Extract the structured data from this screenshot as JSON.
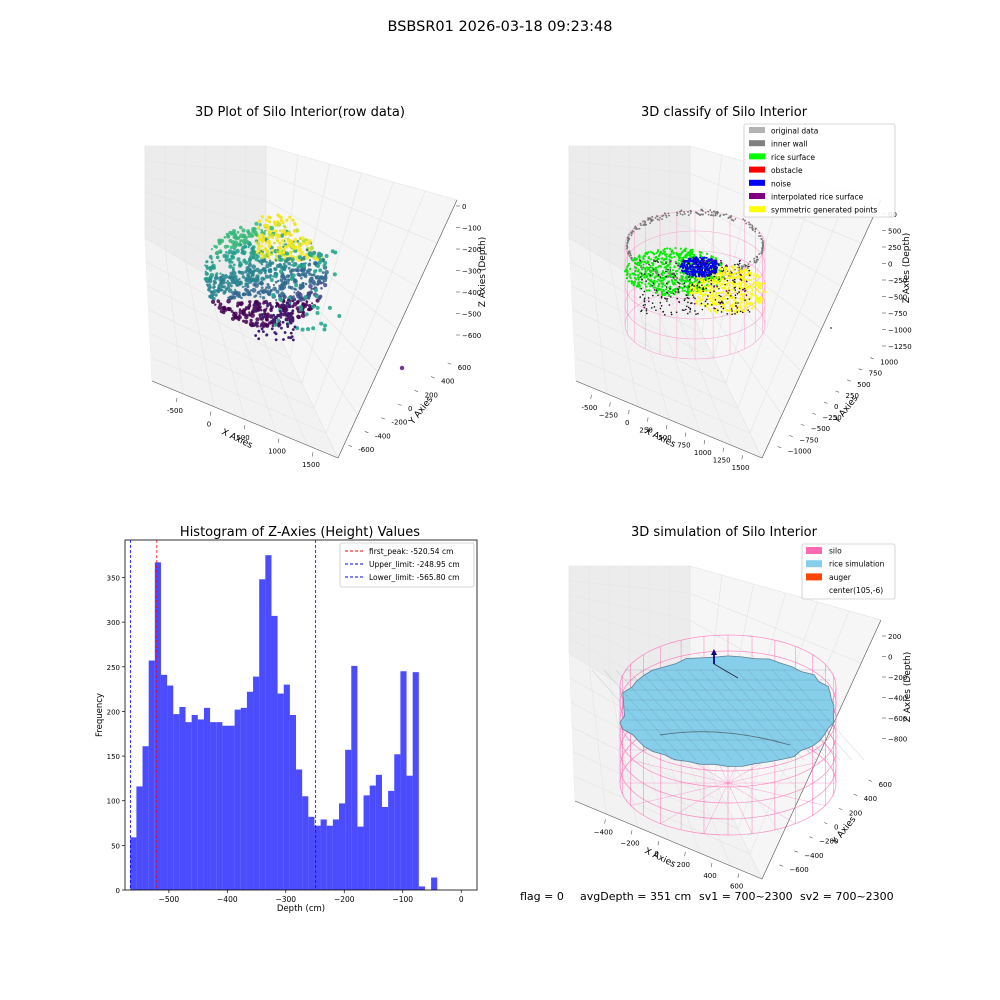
{
  "suptitle": "BSBSR01 2026-03-18 09:23:48",
  "footer": {
    "flag": "flag = 0",
    "avg_depth": "avgDepth = 351 cm",
    "sv1": "sv1 = 700~2300",
    "sv2": "sv2 = 700~2300"
  },
  "chart_data": [
    {
      "id": "raw",
      "type": "scatter",
      "title": "3D Plot of Silo Interior(row data)",
      "xlabel": "X Axies",
      "ylabel": "Y Axies",
      "zlabel": "Z Axies (Depth)",
      "xticks": [
        "-500",
        "0",
        "500",
        "1000",
        "1500"
      ],
      "yticks": [
        "-600",
        "-400",
        "-200",
        "0",
        "200",
        "400",
        "600"
      ],
      "zticks": [
        "0",
        "−100",
        "−200",
        "−300",
        "−400",
        "−500",
        "−600"
      ],
      "xlim": [
        -650,
        1600
      ],
      "ylim": [
        -650,
        650
      ],
      "zlim": [
        -650,
        30
      ],
      "colors": {
        "low": "#440154",
        "mid": "#21918c",
        "high": "#fde725"
      }
    },
    {
      "id": "classify",
      "type": "scatter",
      "title": "3D classify of Silo Interior",
      "xlabel": "X Axies",
      "ylabel": "Y Axies",
      "zlabel": "Z Axies (Depth)",
      "xticks": [
        "-500",
        "−250",
        "0",
        "250",
        "500",
        "750",
        "1000",
        "1250",
        "1500"
      ],
      "yticks": [
        "−1000",
        "−750",
        "−500",
        "−250",
        "0",
        "250",
        "500",
        "750",
        "1000"
      ],
      "zticks": [
        "500",
        "250",
        "0",
        "−250",
        "−500",
        "−750",
        "−1000",
        "−1250"
      ],
      "zticks_partial": "00",
      "xlim": [
        -600,
        1550
      ],
      "ylim": [
        -1050,
        1050
      ],
      "zlim": [
        -1400,
        600
      ],
      "legend": [
        {
          "label": "original data",
          "color": "#b3b3b3"
        },
        {
          "label": "inner wall",
          "color": "#808080"
        },
        {
          "label": "rice surface",
          "color": "#00ff00"
        },
        {
          "label": "obstacle",
          "color": "#ff0000"
        },
        {
          "label": "noise",
          "color": "#0000ff"
        },
        {
          "label": "interpolated rice surface",
          "color": "#800080"
        },
        {
          "label": "symmetric generated points",
          "color": "#ffff00"
        }
      ],
      "legend_loc": "upper right"
    },
    {
      "id": "hist",
      "type": "bar",
      "title": "Histogram of Z-Axies (Height) Values",
      "xlabel": "Depth (cm)",
      "ylabel": "Frequency",
      "xlim": [
        -575,
        27
      ],
      "ylim": [
        0,
        392
      ],
      "xticks": [
        -500,
        -400,
        -300,
        -200,
        -100,
        0
      ],
      "xtick_labels": [
        "−500",
        "−400",
        "−300",
        "−200",
        "−100",
        "0"
      ],
      "yticks": [
        0,
        50,
        100,
        150,
        200,
        250,
        300,
        350
      ],
      "bin_start": -566,
      "bin_width": 10.5,
      "color": "#0000ff",
      "values": [
        59,
        116,
        161,
        257,
        367,
        241,
        229,
        197,
        205,
        188,
        196,
        191,
        204,
        188,
        188,
        184,
        184,
        202,
        204,
        222,
        239,
        348,
        375,
        307,
        220,
        230,
        196,
        135,
        105,
        82,
        72,
        79,
        72,
        79,
        97,
        157,
        251,
        71,
        106,
        117,
        129,
        93,
        111,
        152,
        245,
        128,
        244,
        4,
        0,
        14
      ],
      "lines": [
        {
          "label": "first_peak: -520.54 cm",
          "x": -520.54,
          "color": "#ff0000"
        },
        {
          "label": "Upper_limit: -248.95 cm",
          "x": -248.95,
          "color": "#0000ff"
        },
        {
          "label": "Lower_limit: -565.80 cm",
          "x": -565.8,
          "color": "#0000ff"
        }
      ],
      "legend_loc": "upper right"
    },
    {
      "id": "sim",
      "type": "surface",
      "title": "3D simulation of Silo Interior",
      "xlabel": "X Axies",
      "ylabel": "Y Axies",
      "zlabel": "Z Axies (Depth)",
      "xticks": [
        "−400",
        "−200",
        "0",
        "200",
        "400",
        "600"
      ],
      "yticks": [
        "−600",
        "−400",
        "−200",
        "0",
        "200",
        "400",
        "600"
      ],
      "zticks": [
        "200",
        "0",
        "−200",
        "−400",
        "−600",
        "−800"
      ],
      "xlim": [
        -550,
        700
      ],
      "ylim": [
        -700,
        700
      ],
      "zlim": [
        -1000,
        300
      ],
      "legend": [
        {
          "label": "silo",
          "color": "#ff69b4"
        },
        {
          "label": "rice simulation",
          "color": "#87ceeb"
        },
        {
          "label": "auger",
          "color": "#ff4500"
        },
        {
          "label": "center(105,-6)",
          "color": ""
        }
      ],
      "legend_loc": "upper right"
    }
  ]
}
